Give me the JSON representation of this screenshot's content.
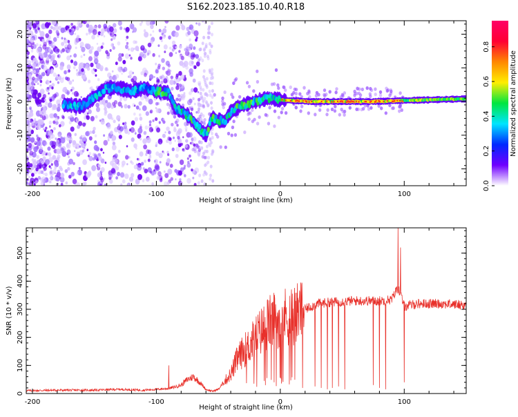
{
  "title": "S162.2023.185.10.40.R18",
  "colors": {
    "snr_line": "#e8302a",
    "spectral_low": "#7a00ff",
    "spectral_high": "#ff0033",
    "colorbar": [
      "#ffffff",
      "#6f00ff",
      "#0028ff",
      "#00e5ff",
      "#00e640",
      "#ffee00",
      "#ff8800",
      "#ff0033",
      "#ff0066"
    ]
  },
  "chart_data": [
    {
      "type": "heatmap",
      "title": "S162.2023.185.10.40.R18",
      "xlabel": "Height of straight line (km)",
      "ylabel": "Frequency (Hz)",
      "xlim": [
        -205,
        150
      ],
      "ylim": [
        -25,
        24
      ],
      "x_ticks": [
        -200,
        -100,
        0,
        100
      ],
      "y_ticks": [
        -20,
        -10,
        0,
        10,
        20
      ],
      "colorbar": {
        "label": "Normalized spectral amplitude",
        "range": [
          0,
          0.95
        ],
        "ticks": [
          0.0,
          0.2,
          0.4,
          0.6,
          0.8
        ]
      },
      "ridge": [
        {
          "x": -170,
          "freq": -1
        },
        {
          "x": -160,
          "freq": -1.5
        },
        {
          "x": -140,
          "freq": 4
        },
        {
          "x": -130,
          "freq": 4
        },
        {
          "x": -120,
          "freq": 3
        },
        {
          "x": -110,
          "freq": 4
        },
        {
          "x": -100,
          "freq": 3
        },
        {
          "x": -90,
          "freq": 2.5
        },
        {
          "x": -85,
          "freq": -2
        },
        {
          "x": -75,
          "freq": -4
        },
        {
          "x": -68,
          "freq": -7
        },
        {
          "x": -60,
          "freq": -10
        },
        {
          "x": -55,
          "freq": -5
        },
        {
          "x": -45,
          "freq": -6
        },
        {
          "x": -40,
          "freq": -3
        },
        {
          "x": -30,
          "freq": -1
        },
        {
          "x": -20,
          "freq": 0
        },
        {
          "x": -10,
          "freq": 1
        },
        {
          "x": 0,
          "freq": 0.5
        },
        {
          "x": 25,
          "freq": 0
        },
        {
          "x": 50,
          "freq": 0
        },
        {
          "x": 75,
          "freq": 0
        },
        {
          "x": 100,
          "freq": 0.3
        },
        {
          "x": 150,
          "freq": 0.8
        }
      ]
    },
    {
      "type": "line",
      "xlabel": "Height of straight line (km)",
      "ylabel": "SNR (10 * v/v)",
      "xlim": [
        -205,
        150
      ],
      "ylim": [
        0,
        590
      ],
      "x_ticks": [
        -200,
        -100,
        0,
        100
      ],
      "y_ticks": [
        0,
        100,
        200,
        300,
        400,
        500
      ],
      "envelope": {
        "x": [
          -205,
          -180,
          -150,
          -130,
          -110,
          -90,
          -80,
          -75,
          -70,
          -65,
          -60,
          -55,
          -50,
          -40,
          -35,
          -30,
          -25,
          -20,
          -10,
          0,
          10,
          20,
          30,
          40,
          60,
          80,
          90,
          95,
          100,
          110,
          130,
          150
        ],
        "y": [
          10,
          12,
          12,
          15,
          12,
          18,
          30,
          50,
          60,
          40,
          15,
          8,
          15,
          70,
          120,
          150,
          170,
          200,
          250,
          270,
          280,
          300,
          320,
          325,
          330,
          330,
          335,
          380,
          310,
          320,
          320,
          315
        ]
      },
      "peaks": [
        {
          "x": -90,
          "y": 100
        },
        {
          "x": 95,
          "y": 590
        },
        {
          "x": 97,
          "y": 520
        }
      ],
      "dropouts": [
        {
          "x": 18,
          "y": 20
        },
        {
          "x": 28,
          "y": 25
        },
        {
          "x": 33,
          "y": 20
        },
        {
          "x": 38,
          "y": 15
        },
        {
          "x": 42,
          "y": 20
        },
        {
          "x": 47,
          "y": 25
        },
        {
          "x": 52,
          "y": 15
        },
        {
          "x": 75,
          "y": 30
        },
        {
          "x": 80,
          "y": 20
        },
        {
          "x": 85,
          "y": 15
        },
        {
          "x": 100,
          "y": 40
        }
      ]
    }
  ]
}
